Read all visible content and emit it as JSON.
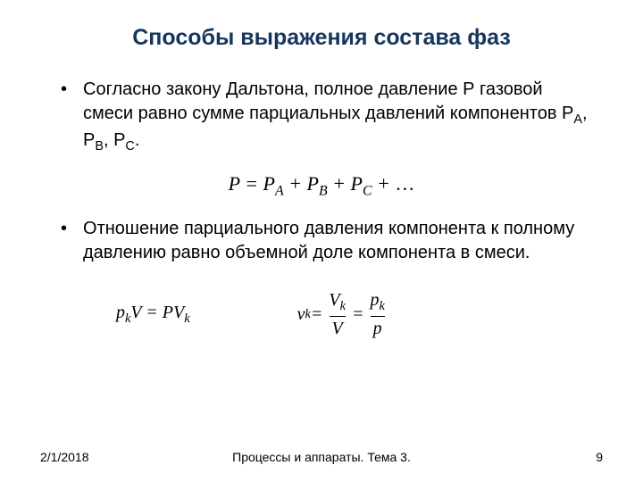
{
  "title": "Способы выражения состава фаз",
  "bullets": [
    {
      "text_before": "Согласно закону Дальтона, полное давление Р газовой смеси равно сумме парциальных давлений компонентов Р",
      "sub1": "А",
      "mid1": ", Р",
      "sub2": "В",
      "mid2": ", Р",
      "sub3": "С",
      "after": "."
    },
    {
      "text": " Отношение парциального давления компонента к полному давлению равно объемной доле компонента в смеси."
    }
  ],
  "formula1": {
    "P": "P",
    "eq": " = ",
    "PA": "P",
    "subA": "A",
    "plus1": " + ",
    "PB": "P",
    "subB": "B",
    "plus2": " + ",
    "PC": "P",
    "subC": "C",
    "plus3": " + ",
    "dots": "…"
  },
  "formula2_left": {
    "p": "p",
    "sub_k1": "k",
    "V": "V",
    "eq": " = ",
    "P2": "PV",
    "sub_k2": "k"
  },
  "formula2_right": {
    "nu": "ν",
    "sub_k": "k",
    "eq1": " = ",
    "Vk_num": "V",
    "Vk_num_sub": "k",
    "V_den": "V",
    "eq2": " = ",
    "pk_num": "p",
    "pk_num_sub": "k",
    "p_den": "p"
  },
  "footer": {
    "date": "2/1/2018",
    "center": "Процессы и аппараты. Тема 3.",
    "page": "9"
  }
}
